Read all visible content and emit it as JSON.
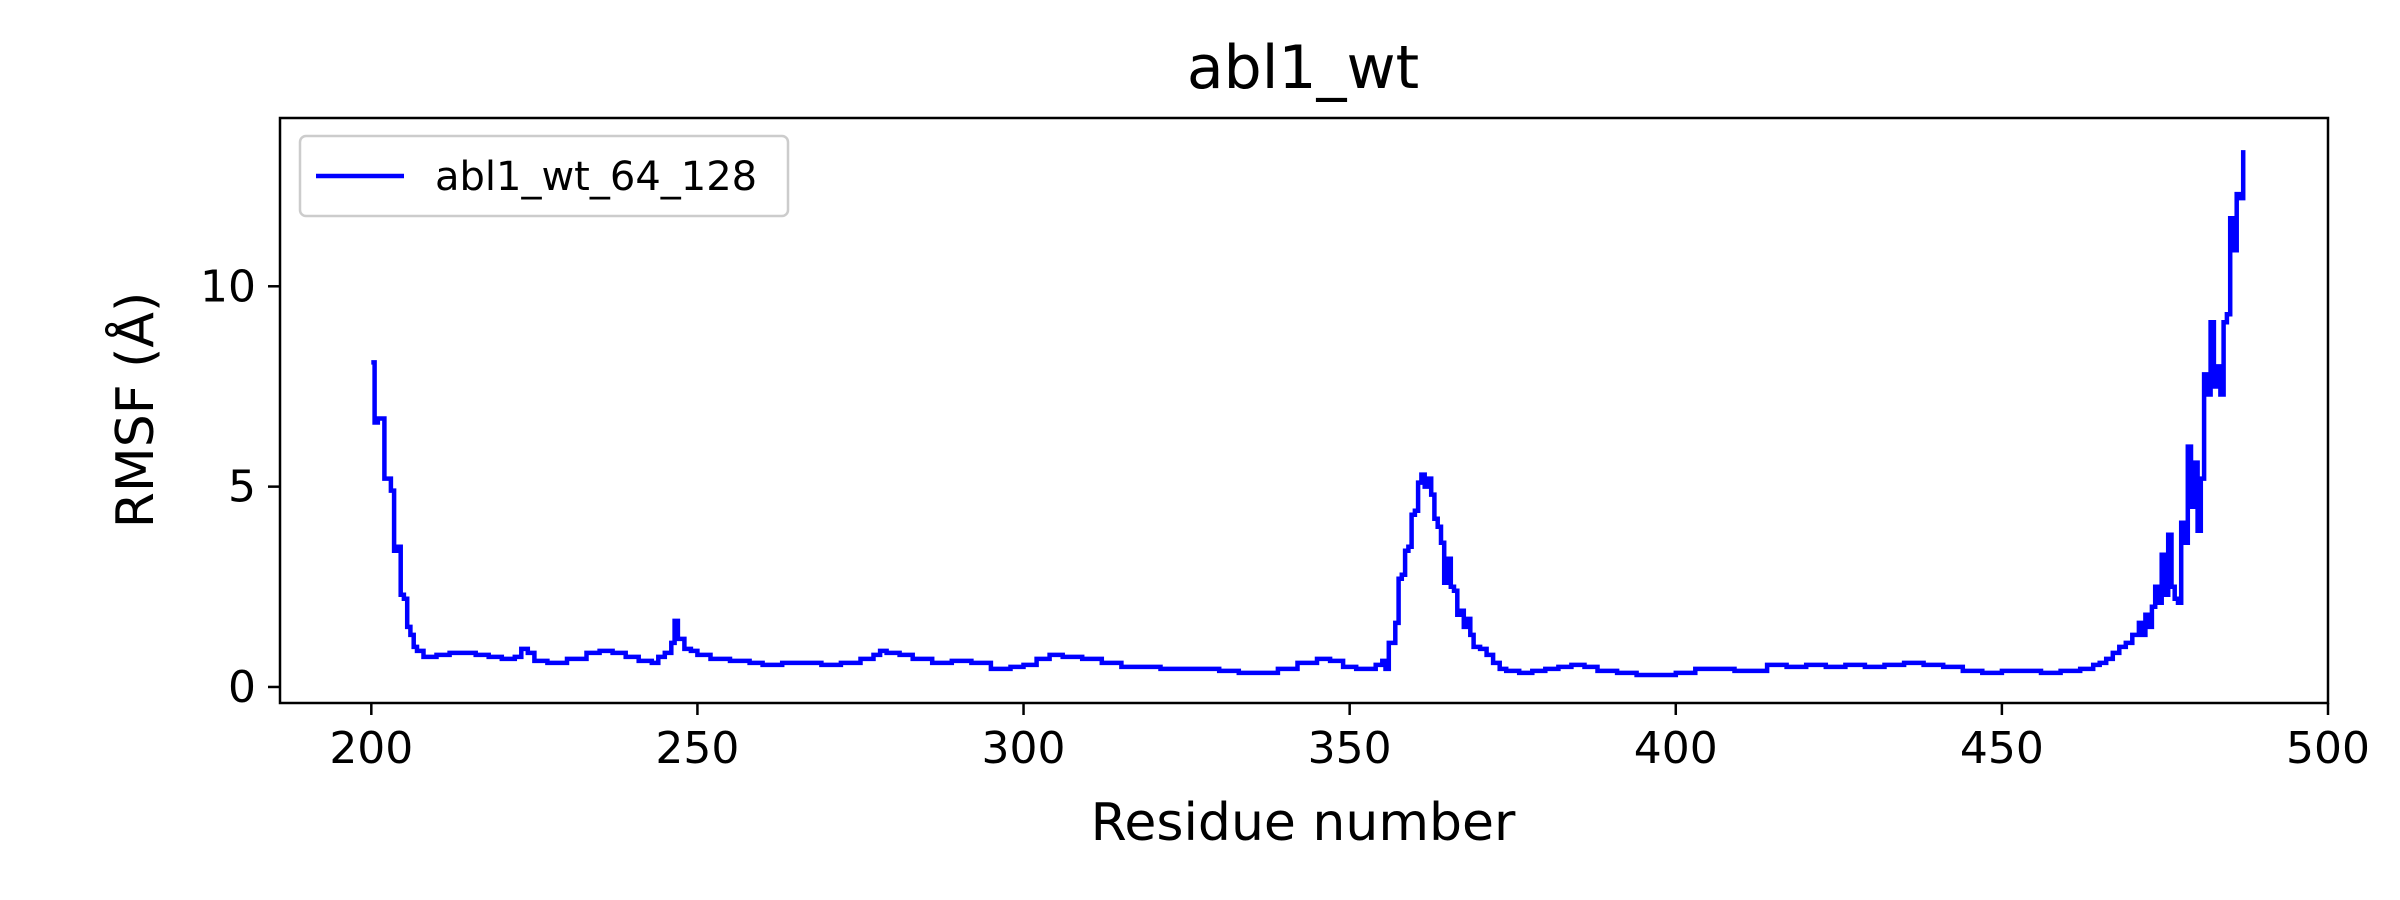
{
  "chart_data": {
    "type": "line",
    "title": "abl1_wt",
    "xlabel": "Residue number",
    "ylabel": "RMSF (Å)",
    "xlim": [
      186,
      500
    ],
    "ylim": [
      -0.4,
      14.2
    ],
    "xticks": [
      200,
      250,
      300,
      350,
      400,
      450,
      500
    ],
    "yticks": [
      0,
      5,
      10
    ],
    "grid": false,
    "legend": {
      "placement": "top-left"
    },
    "series": [
      {
        "name": "abl1_wt_64_128",
        "color": "#0000ff",
        "points": [
          [
            200,
            8.1
          ],
          [
            200.5,
            6.6
          ],
          [
            201,
            6.7
          ],
          [
            202,
            5.2
          ],
          [
            203,
            4.9
          ],
          [
            203.5,
            3.4
          ],
          [
            204,
            3.5
          ],
          [
            204.5,
            2.3
          ],
          [
            205,
            2.2
          ],
          [
            205.5,
            1.5
          ],
          [
            206,
            1.3
          ],
          [
            206.5,
            1.0
          ],
          [
            207,
            0.9
          ],
          [
            208,
            0.75
          ],
          [
            210,
            0.8
          ],
          [
            212,
            0.85
          ],
          [
            214,
            0.85
          ],
          [
            216,
            0.8
          ],
          [
            218,
            0.75
          ],
          [
            220,
            0.7
          ],
          [
            222,
            0.75
          ],
          [
            223,
            0.95
          ],
          [
            224,
            0.85
          ],
          [
            225,
            0.65
          ],
          [
            227,
            0.6
          ],
          [
            230,
            0.7
          ],
          [
            233,
            0.85
          ],
          [
            235,
            0.9
          ],
          [
            237,
            0.85
          ],
          [
            239,
            0.75
          ],
          [
            241,
            0.65
          ],
          [
            243,
            0.6
          ],
          [
            244,
            0.75
          ],
          [
            245,
            0.85
          ],
          [
            246,
            1.1
          ],
          [
            246.5,
            1.65
          ],
          [
            247,
            1.2
          ],
          [
            248,
            0.95
          ],
          [
            249,
            0.9
          ],
          [
            250,
            0.8
          ],
          [
            252,
            0.7
          ],
          [
            255,
            0.65
          ],
          [
            258,
            0.6
          ],
          [
            260,
            0.55
          ],
          [
            263,
            0.6
          ],
          [
            266,
            0.6
          ],
          [
            269,
            0.55
          ],
          [
            272,
            0.6
          ],
          [
            275,
            0.7
          ],
          [
            277,
            0.8
          ],
          [
            278,
            0.9
          ],
          [
            279,
            0.85
          ],
          [
            281,
            0.8
          ],
          [
            283,
            0.7
          ],
          [
            286,
            0.6
          ],
          [
            289,
            0.65
          ],
          [
            292,
            0.6
          ],
          [
            295,
            0.45
          ],
          [
            298,
            0.5
          ],
          [
            300,
            0.55
          ],
          [
            302,
            0.7
          ],
          [
            304,
            0.8
          ],
          [
            306,
            0.75
          ],
          [
            309,
            0.7
          ],
          [
            312,
            0.6
          ],
          [
            315,
            0.5
          ],
          [
            318,
            0.5
          ],
          [
            321,
            0.45
          ],
          [
            324,
            0.45
          ],
          [
            327,
            0.45
          ],
          [
            330,
            0.4
          ],
          [
            333,
            0.35
          ],
          [
            336,
            0.35
          ],
          [
            339,
            0.45
          ],
          [
            342,
            0.6
          ],
          [
            345,
            0.7
          ],
          [
            347,
            0.65
          ],
          [
            349,
            0.5
          ],
          [
            351,
            0.45
          ],
          [
            353,
            0.45
          ],
          [
            354,
            0.55
          ],
          [
            355,
            0.65
          ],
          [
            355.5,
            0.45
          ],
          [
            356,
            1.1
          ],
          [
            357,
            1.6
          ],
          [
            357.5,
            2.7
          ],
          [
            358,
            2.8
          ],
          [
            358.5,
            3.4
          ],
          [
            359,
            3.5
          ],
          [
            359.5,
            4.3
          ],
          [
            360,
            4.4
          ],
          [
            360.5,
            5.1
          ],
          [
            361,
            5.3
          ],
          [
            361.5,
            5.0
          ],
          [
            362,
            5.2
          ],
          [
            362.5,
            4.8
          ],
          [
            363,
            4.2
          ],
          [
            363.5,
            4.0
          ],
          [
            364,
            3.6
          ],
          [
            364.5,
            2.6
          ],
          [
            365,
            3.2
          ],
          [
            365.5,
            2.5
          ],
          [
            366,
            2.4
          ],
          [
            366.5,
            1.8
          ],
          [
            367,
            1.9
          ],
          [
            367.5,
            1.5
          ],
          [
            368,
            1.7
          ],
          [
            368.5,
            1.3
          ],
          [
            369,
            1.0
          ],
          [
            370,
            0.95
          ],
          [
            371,
            0.8
          ],
          [
            372,
            0.6
          ],
          [
            373,
            0.45
          ],
          [
            374,
            0.4
          ],
          [
            376,
            0.35
          ],
          [
            378,
            0.4
          ],
          [
            380,
            0.45
          ],
          [
            382,
            0.5
          ],
          [
            384,
            0.55
          ],
          [
            386,
            0.5
          ],
          [
            388,
            0.4
          ],
          [
            391,
            0.35
          ],
          [
            394,
            0.3
          ],
          [
            397,
            0.3
          ],
          [
            400,
            0.35
          ],
          [
            403,
            0.45
          ],
          [
            406,
            0.45
          ],
          [
            409,
            0.4
          ],
          [
            412,
            0.4
          ],
          [
            414,
            0.55
          ],
          [
            417,
            0.5
          ],
          [
            420,
            0.55
          ],
          [
            423,
            0.5
          ],
          [
            426,
            0.55
          ],
          [
            429,
            0.5
          ],
          [
            432,
            0.55
          ],
          [
            435,
            0.6
          ],
          [
            438,
            0.55
          ],
          [
            441,
            0.5
          ],
          [
            444,
            0.4
          ],
          [
            447,
            0.35
          ],
          [
            450,
            0.4
          ],
          [
            453,
            0.4
          ],
          [
            456,
            0.35
          ],
          [
            459,
            0.4
          ],
          [
            462,
            0.45
          ],
          [
            464,
            0.55
          ],
          [
            465,
            0.6
          ],
          [
            466,
            0.7
          ],
          [
            467,
            0.85
          ],
          [
            468,
            1.0
          ],
          [
            469,
            1.1
          ],
          [
            470,
            1.3
          ],
          [
            471,
            1.6
          ],
          [
            471.5,
            1.3
          ],
          [
            472,
            1.8
          ],
          [
            472.5,
            1.5
          ],
          [
            473,
            2.0
          ],
          [
            473.5,
            2.5
          ],
          [
            474,
            2.1
          ],
          [
            474.5,
            3.3
          ],
          [
            475,
            2.3
          ],
          [
            475.5,
            3.8
          ],
          [
            476,
            2.5
          ],
          [
            476.5,
            2.2
          ],
          [
            477,
            2.1
          ],
          [
            477.5,
            4.1
          ],
          [
            478,
            3.6
          ],
          [
            478.5,
            6.0
          ],
          [
            479,
            4.5
          ],
          [
            479.5,
            5.6
          ],
          [
            480,
            3.9
          ],
          [
            480.5,
            5.2
          ],
          [
            481,
            7.8
          ],
          [
            481.5,
            7.3
          ],
          [
            482,
            9.1
          ],
          [
            482.5,
            7.5
          ],
          [
            483,
            8.0
          ],
          [
            483.5,
            7.3
          ],
          [
            484,
            9.1
          ],
          [
            484.5,
            9.3
          ],
          [
            485,
            11.7
          ],
          [
            485.5,
            10.9
          ],
          [
            486,
            12.3
          ],
          [
            486.5,
            12.2
          ],
          [
            487,
            13.4
          ]
        ]
      }
    ]
  }
}
